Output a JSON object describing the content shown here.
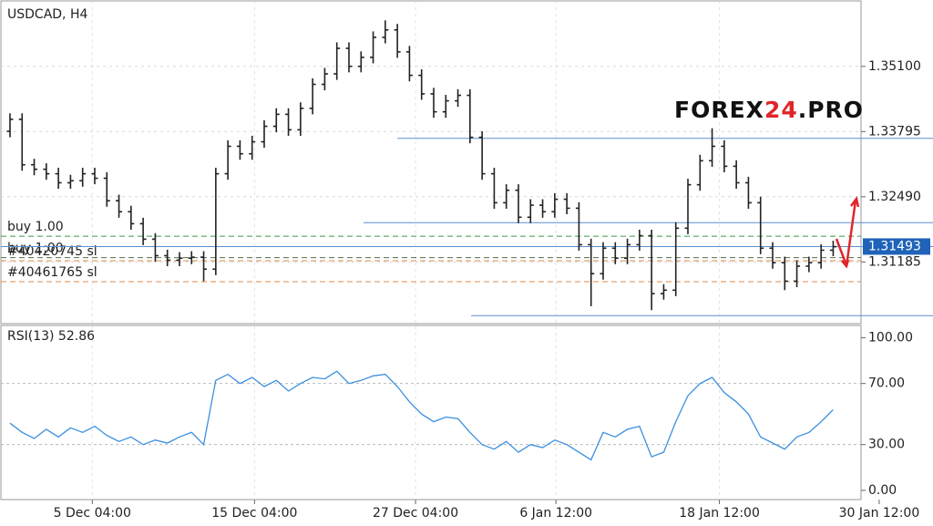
{
  "chart_data": [
    {
      "type": "ohlc",
      "title": "USDCAD, H4",
      "watermark": {
        "left": "FOREX",
        "accent": "24",
        "right": ".PRO"
      },
      "open": [
        1.338,
        1.3404,
        1.3313,
        1.3304,
        1.3295,
        1.3277,
        1.3281,
        1.3295,
        1.3286,
        1.3241,
        1.3219,
        1.3195,
        1.3164,
        1.3131,
        1.3122,
        1.3126,
        1.3128,
        1.3104,
        1.3295,
        1.335,
        1.3335,
        1.3359,
        1.339,
        1.3414,
        1.3383,
        1.3426,
        1.3474,
        1.3495,
        1.3546,
        1.351,
        1.3528,
        1.3568,
        1.3583,
        1.3539,
        1.3492,
        1.3455,
        1.3419,
        1.3441,
        1.3452,
        1.3368,
        1.3295,
        1.3237,
        1.3262,
        1.3208,
        1.3232,
        1.3219,
        1.3244,
        1.3226,
        1.3153,
        1.3095,
        1.3146,
        1.3126,
        1.3153,
        1.3171,
        1.3055,
        1.3062,
        1.3186,
        1.3273,
        1.3321,
        1.335,
        1.331,
        1.3277,
        1.3237,
        1.3146,
        1.3117,
        1.308,
        1.311,
        1.3117,
        1.3142
      ],
      "high": [
        1.3416,
        1.3416,
        1.3325,
        1.3316,
        1.3307,
        1.3293,
        1.3307,
        1.3307,
        1.3298,
        1.3253,
        1.3231,
        1.3207,
        1.3176,
        1.3143,
        1.3138,
        1.314,
        1.314,
        1.3307,
        1.3362,
        1.3362,
        1.3371,
        1.3402,
        1.3426,
        1.3426,
        1.3438,
        1.3486,
        1.3507,
        1.3558,
        1.3558,
        1.354,
        1.358,
        1.3602,
        1.3595,
        1.3551,
        1.3504,
        1.3467,
        1.3453,
        1.3464,
        1.3464,
        1.338,
        1.3307,
        1.3274,
        1.3274,
        1.3244,
        1.3244,
        1.3256,
        1.3256,
        1.3238,
        1.3165,
        1.3158,
        1.3158,
        1.3165,
        1.3183,
        1.3183,
        1.3074,
        1.3198,
        1.3285,
        1.3333,
        1.3386,
        1.3362,
        1.3322,
        1.3289,
        1.3249,
        1.3158,
        1.3129,
        1.3122,
        1.3129,
        1.3154,
        1.3161
      ],
      "low": [
        1.3368,
        1.3301,
        1.3292,
        1.3283,
        1.3265,
        1.3265,
        1.3269,
        1.3274,
        1.3229,
        1.3207,
        1.3183,
        1.3152,
        1.3119,
        1.311,
        1.311,
        1.3114,
        1.308,
        1.3092,
        1.3283,
        1.3323,
        1.3323,
        1.3347,
        1.3378,
        1.3371,
        1.3371,
        1.3414,
        1.3462,
        1.3483,
        1.3498,
        1.3498,
        1.3516,
        1.3556,
        1.3527,
        1.348,
        1.3443,
        1.3407,
        1.3407,
        1.3429,
        1.3356,
        1.3283,
        1.3225,
        1.3225,
        1.3196,
        1.3196,
        1.3207,
        1.3207,
        1.3214,
        1.3141,
        1.303,
        1.3083,
        1.3114,
        1.3114,
        1.3141,
        1.3022,
        1.3043,
        1.305,
        1.3174,
        1.3261,
        1.3309,
        1.3298,
        1.3265,
        1.3225,
        1.3134,
        1.3105,
        1.3062,
        1.3068,
        1.3098,
        1.3105,
        1.313
      ],
      "close": [
        1.3404,
        1.3313,
        1.3304,
        1.3295,
        1.3277,
        1.3281,
        1.3295,
        1.3286,
        1.3241,
        1.3219,
        1.3195,
        1.3164,
        1.3131,
        1.3122,
        1.3126,
        1.3128,
        1.3104,
        1.3295,
        1.335,
        1.3335,
        1.3359,
        1.339,
        1.3414,
        1.3383,
        1.3426,
        1.3474,
        1.3495,
        1.3546,
        1.351,
        1.3528,
        1.3568,
        1.3583,
        1.3539,
        1.3492,
        1.3455,
        1.3419,
        1.3441,
        1.3452,
        1.3368,
        1.3295,
        1.3237,
        1.3262,
        1.3208,
        1.3232,
        1.3219,
        1.3244,
        1.3226,
        1.3153,
        1.3095,
        1.3146,
        1.3126,
        1.3153,
        1.3171,
        1.3055,
        1.3062,
        1.3186,
        1.3273,
        1.3321,
        1.335,
        1.331,
        1.3277,
        1.3237,
        1.3146,
        1.3117,
        1.308,
        1.311,
        1.3117,
        1.3142,
        1.3149
      ],
      "color": "#222222",
      "xlim": [
        -0.75,
        70.3
      ],
      "xticks": [
        {
          "value": 6.8,
          "label": "5 Dec 04:00"
        },
        {
          "value": 20.2,
          "label": "15 Dec 04:00"
        },
        {
          "value": 33.5,
          "label": "27 Dec 04:00"
        },
        {
          "value": 45.1,
          "label": "6 Jan 12:00"
        },
        {
          "value": 58.6,
          "label": "18 Jan 12:00"
        },
        {
          "value": 71.8,
          "label": "30 Jan 12:00"
        }
      ],
      "ylim": [
        1.2995,
        1.3641
      ],
      "yticks": [
        {
          "value": 1.351,
          "label": "1.35100"
        },
        {
          "value": 1.33795,
          "label": "1.33795"
        },
        {
          "value": 1.3249,
          "label": "1.32490"
        },
        {
          "value": 1.31185,
          "label": "1.31185"
        }
      ],
      "grid": true,
      "current_price": 1.31493,
      "lines": [
        {
          "value": 1.3366,
          "from": 32
        },
        {
          "value": 1.3197,
          "from": 29.2
        },
        {
          "value": 1.3011,
          "from": 38.1
        }
      ],
      "line_color": "#5b8fd0",
      "orders": [
        {
          "label": "buy 1.00",
          "value": 1.317,
          "color": "#3a9a46"
        },
        {
          "label": "buy 1.00",
          "value": 1.3127,
          "color": "#556b50"
        },
        {
          "label": "#40420745 sl",
          "value": 1.3121,
          "color": "#e0884a"
        },
        {
          "label": "#40461765 sl",
          "value": 1.3079,
          "color": "#e0884a"
        }
      ]
    },
    {
      "type": "line",
      "title": "RSI(13) 52.86",
      "values": [
        44,
        38,
        34,
        40,
        35,
        41,
        38,
        42,
        36,
        32,
        35,
        30,
        33,
        31,
        35,
        38,
        30,
        72,
        76,
        70,
        74,
        68,
        72,
        65,
        70,
        74,
        73,
        78,
        70,
        72,
        75,
        76,
        68,
        58,
        50,
        45,
        48,
        47,
        38,
        30,
        27,
        32,
        25,
        30,
        28,
        33,
        30,
        25,
        20,
        38,
        35,
        40,
        42,
        22,
        25,
        45,
        62,
        70,
        74,
        64,
        58,
        50,
        35,
        31,
        27,
        35,
        38,
        45,
        52.86
      ],
      "color": "#3b8fe0",
      "ylim": [
        -6,
        108
      ],
      "yticks": [
        {
          "value": 100,
          "label": "100.00"
        },
        {
          "value": 70,
          "label": "70.00"
        },
        {
          "value": 30,
          "label": "30.00"
        },
        {
          "value": 0,
          "label": "0.00"
        }
      ],
      "levels": [
        70,
        30
      ]
    }
  ]
}
